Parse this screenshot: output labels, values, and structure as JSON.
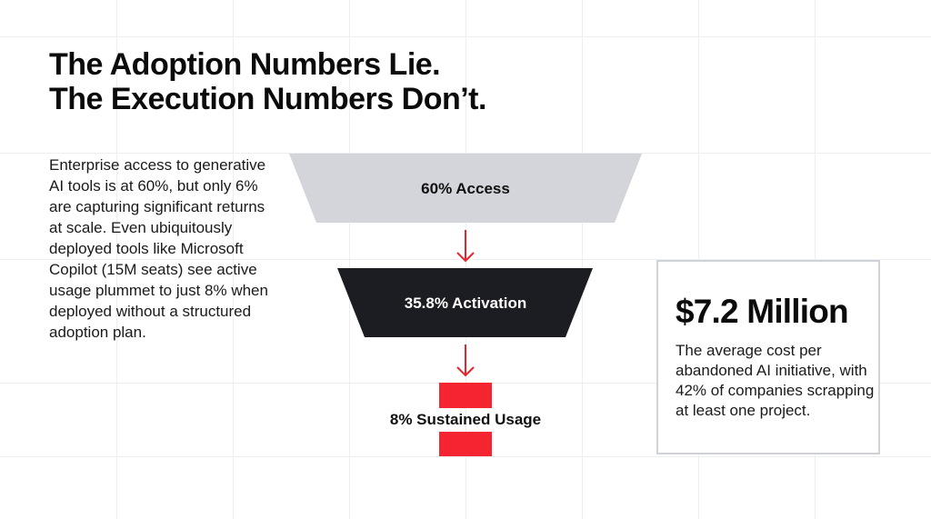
{
  "title": {
    "line1": "The Adoption Numbers Lie.",
    "line2": "The Execution Numbers Don’t."
  },
  "description": "Enterprise access to generative AI tools is at 60%, but only 6% are capturing significant returns at scale. Even ubiquitously deployed tools like Microsoft Copilot (15M seats) see active usage plummet to just 8% when deployed without a structured adoption plan.",
  "funnel": {
    "stages": [
      {
        "label": "60% Access",
        "value": 60,
        "color": "#d3d5da"
      },
      {
        "label": "35.8% Activation",
        "value": 35.8,
        "color": "#1c1d22"
      },
      {
        "label": "8% Sustained Usage",
        "value": 8,
        "color": "#f42430"
      }
    ],
    "arrow_color": "#e8232c"
  },
  "stat_card": {
    "headline": "$7.2 Million",
    "body": "The average cost per abandoned AI initiative, with 42% of companies scrapping at least one project."
  }
}
